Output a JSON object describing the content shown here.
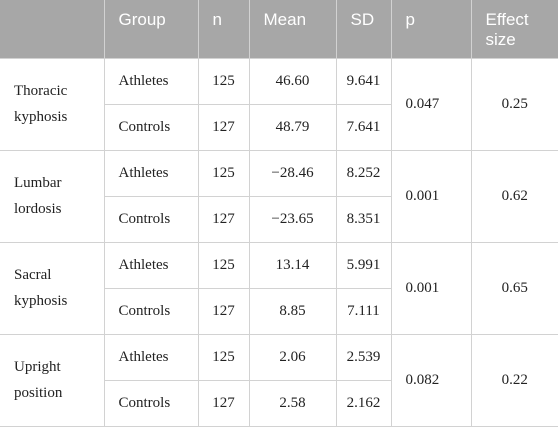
{
  "header": {
    "param": "",
    "group": "Group",
    "n": "n",
    "mean": "Mean",
    "sd": "SD",
    "p": "p",
    "effect": "Effect size"
  },
  "rows": [
    {
      "label": "Thoracic kyphosis",
      "p": "0.047",
      "effect": "0.25",
      "groups": [
        {
          "group": "Athletes",
          "n": "125",
          "mean": "46.60",
          "sd": "9.641"
        },
        {
          "group": "Controls",
          "n": "127",
          "mean": "48.79",
          "sd": "7.641"
        }
      ]
    },
    {
      "label": "Lumbar lordosis",
      "p": "0.001",
      "effect": "0.62",
      "groups": [
        {
          "group": "Athletes",
          "n": "125",
          "mean": "−28.46",
          "sd": "8.252"
        },
        {
          "group": "Controls",
          "n": "127",
          "mean": "−23.65",
          "sd": "8.351"
        }
      ]
    },
    {
      "label": "Sacral kyphosis",
      "p": "0.001",
      "effect": "0.65",
      "groups": [
        {
          "group": "Athletes",
          "n": "125",
          "mean": "13.14",
          "sd": "5.991"
        },
        {
          "group": "Controls",
          "n": "127",
          "mean": "8.85",
          "sd": "7.111"
        }
      ]
    },
    {
      "label": "Upright position",
      "p": "0.082",
      "effect": "0.22",
      "groups": [
        {
          "group": "Athletes",
          "n": "125",
          "mean": "2.06",
          "sd": "2.539"
        },
        {
          "group": "Controls",
          "n": "127",
          "mean": "2.58",
          "sd": "2.162"
        }
      ]
    }
  ]
}
